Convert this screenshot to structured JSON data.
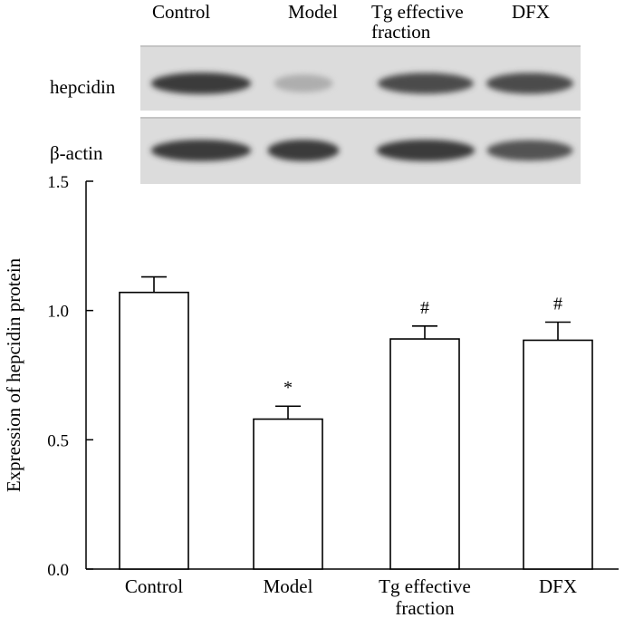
{
  "western_blot": {
    "lane_labels": [
      {
        "lines": [
          "Control"
        ]
      },
      {
        "lines": [
          "Model"
        ]
      },
      {
        "lines": [
          "Tg effective",
          "fraction"
        ]
      },
      {
        "lines": [
          "DFX"
        ]
      }
    ],
    "rows": [
      {
        "label": "hepcidin",
        "band_intensities": [
          0.95,
          0.25,
          0.85,
          0.85
        ]
      },
      {
        "label": "β-actin",
        "band_intensities": [
          0.95,
          0.95,
          0.95,
          0.8
        ]
      }
    ]
  },
  "chart_data": {
    "type": "bar",
    "categories": [
      {
        "lines": [
          "Control"
        ]
      },
      {
        "lines": [
          "Model"
        ]
      },
      {
        "lines": [
          "Tg effective",
          "fraction"
        ]
      },
      {
        "lines": [
          "DFX"
        ]
      }
    ],
    "values": [
      1.07,
      0.58,
      0.89,
      0.885
    ],
    "errors": [
      0.06,
      0.05,
      0.05,
      0.07
    ],
    "annotations": [
      "",
      "*",
      "#",
      "#"
    ],
    "ylabel": "Expression of hepcidin protein",
    "ylim": [
      0,
      1.5
    ],
    "yticks": [
      {
        "value": 0,
        "label": "0.0"
      },
      {
        "value": 0.5,
        "label": "0.5"
      },
      {
        "value": 1.0,
        "label": "1.0"
      },
      {
        "value": 1.5,
        "label": "1.5"
      }
    ],
    "grid": false
  }
}
